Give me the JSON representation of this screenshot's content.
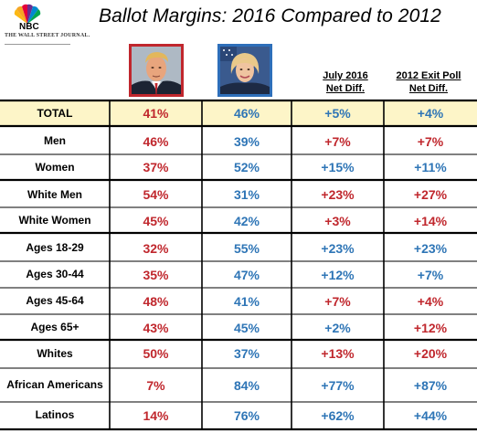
{
  "title": "Ballot Margins: 2016 Compared to 2012",
  "logos": {
    "nbc": "NBC",
    "wsj": "THE WALL STREET JOURNAL."
  },
  "portraits": {
    "trump": "trump-portrait",
    "clinton": "clinton-portrait"
  },
  "colors": {
    "trump_red": "#c0272d",
    "clinton_blue": "#2e75b6",
    "total_row_bg": "#fdf5c8"
  },
  "chart_data": {
    "type": "table",
    "title": "Ballot Margins: 2016 Compared to 2012",
    "columns": [
      "",
      "",
      "",
      "July 2016 Net Diff.",
      "2012 Exit Poll Net Diff."
    ],
    "column_headers": {
      "july_line1": "July 2016",
      "july_line2": "Net Diff.",
      "exit_line1": "2012 Exit Poll",
      "exit_line2": "Net Diff."
    },
    "rows": [
      {
        "label": "TOTAL",
        "trump": "41%",
        "clinton": "46%",
        "july": "+5%",
        "july_party": "blue",
        "exit": "+4%",
        "exit_party": "blue"
      },
      {
        "label": "Men",
        "trump": "46%",
        "clinton": "39%",
        "july": "+7%",
        "july_party": "red",
        "exit": "+7%",
        "exit_party": "red"
      },
      {
        "label": "Women",
        "trump": "37%",
        "clinton": "52%",
        "july": "+15%",
        "july_party": "blue",
        "exit": "+11%",
        "exit_party": "blue"
      },
      {
        "label": "White Men",
        "trump": "54%",
        "clinton": "31%",
        "july": "+23%",
        "july_party": "red",
        "exit": "+27%",
        "exit_party": "red"
      },
      {
        "label": "White Women",
        "trump": "45%",
        "clinton": "42%",
        "july": "+3%",
        "july_party": "red",
        "exit": "+14%",
        "exit_party": "red"
      },
      {
        "label": "Ages 18-29",
        "trump": "32%",
        "clinton": "55%",
        "july": "+23%",
        "july_party": "blue",
        "exit": "+23%",
        "exit_party": "blue"
      },
      {
        "label": "Ages 30-44",
        "trump": "35%",
        "clinton": "47%",
        "july": "+12%",
        "july_party": "blue",
        "exit": "+7%",
        "exit_party": "blue"
      },
      {
        "label": "Ages 45-64",
        "trump": "48%",
        "clinton": "41%",
        "july": "+7%",
        "july_party": "red",
        "exit": "+4%",
        "exit_party": "red"
      },
      {
        "label": "Ages 65+",
        "trump": "43%",
        "clinton": "45%",
        "july": "+2%",
        "july_party": "blue",
        "exit": "+12%",
        "exit_party": "red"
      },
      {
        "label": "Whites",
        "trump": "50%",
        "clinton": "37%",
        "july": "+13%",
        "july_party": "red",
        "exit": "+20%",
        "exit_party": "red"
      },
      {
        "label": "African Americans",
        "trump": "7%",
        "clinton": "84%",
        "july": "+77%",
        "july_party": "blue",
        "exit": "+87%",
        "exit_party": "blue"
      },
      {
        "label": "Latinos",
        "trump": "14%",
        "clinton": "76%",
        "july": "+62%",
        "july_party": "blue",
        "exit": "+44%",
        "exit_party": "blue"
      }
    ]
  }
}
